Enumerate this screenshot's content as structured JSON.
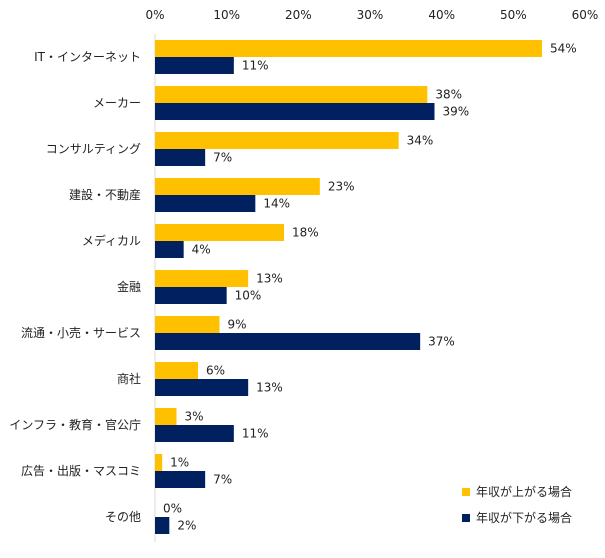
{
  "chart_data": {
    "type": "bar",
    "orientation": "horizontal",
    "title": "",
    "xlabel": "",
    "ylabel": "",
    "xlim": [
      0,
      60
    ],
    "ticks": [
      "0%",
      "10%",
      "20%",
      "30%",
      "40%",
      "50%",
      "60%"
    ],
    "tick_values": [
      0,
      10,
      20,
      30,
      40,
      50,
      60
    ],
    "grid": false,
    "legend_position": "bottom-right",
    "categories": [
      "IT・インターネット",
      "メーカー",
      "コンサルティング",
      "建設・不動産",
      "メディカル",
      "金融",
      "流通・小売・サービス",
      "商社",
      "インフラ・教育・官公庁",
      "広告・出版・マスコミ",
      "その他"
    ],
    "series": [
      {
        "name": "年収が上がる場合",
        "color": "#FFC000",
        "values": [
          54,
          38,
          34,
          23,
          18,
          13,
          9,
          6,
          3,
          1,
          0
        ],
        "labels": [
          "54%",
          "38%",
          "34%",
          "23%",
          "18%",
          "13%",
          "9%",
          "6%",
          "3%",
          "1%",
          "0%"
        ]
      },
      {
        "name": "年収が下がる場合",
        "color": "#002060",
        "values": [
          11,
          39,
          7,
          14,
          4,
          10,
          37,
          13,
          11,
          7,
          2
        ],
        "labels": [
          "11%",
          "39%",
          "7%",
          "14%",
          "4%",
          "10%",
          "37%",
          "13%",
          "11%",
          "7%",
          "2%"
        ]
      }
    ]
  }
}
